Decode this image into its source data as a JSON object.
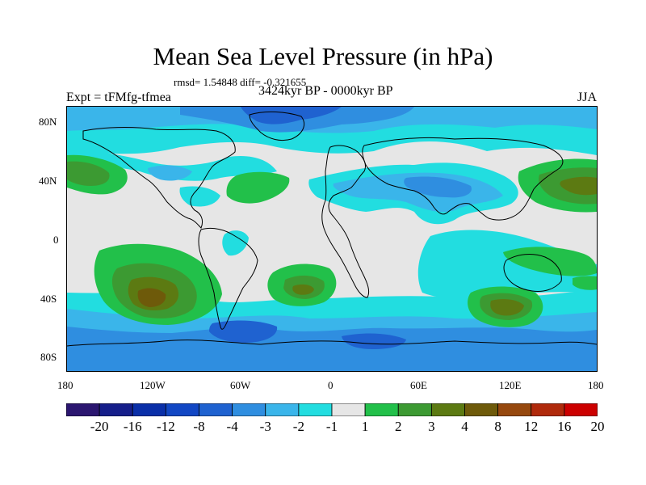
{
  "title": "Mean Sea Level Pressure (in hPa)",
  "stats": "rmsd= 1.54848 diff= -0.321655",
  "experiment": "Expt = tFMfg-tfmea",
  "period": "3424kyr BP - 0000kyr BP",
  "season": "JJA",
  "lat_labels": [
    "80N",
    "40N",
    "0",
    "40S",
    "80S"
  ],
  "lon_labels": [
    "180",
    "120W",
    "60W",
    "0",
    "60E",
    "120E",
    "180"
  ],
  "colorbar": {
    "colors": [
      "#2b1670",
      "#151e8a",
      "#0a2fa8",
      "#1247c4",
      "#1f62d0",
      "#2f8ee0",
      "#3ab5ea",
      "#22dde0",
      "#e6e6e6",
      "#22c04a",
      "#3c9a32",
      "#5c7a12",
      "#6e5a0a",
      "#96480e",
      "#b02a0c",
      "#cc0000"
    ],
    "labels": [
      "-20",
      "-16",
      "-12",
      "-8",
      "-4",
      "-3",
      "-2",
      "-1",
      "1",
      "2",
      "3",
      "4",
      "8",
      "12",
      "16",
      "20"
    ]
  },
  "regions": {
    "neutral": "#e6e6e6",
    "dark_blue": "#1f62d0",
    "blue": "#2f8ee0",
    "light_blue": "#3ab5ea",
    "cyan": "#22dde0",
    "green": "#22c04a",
    "dark_green": "#3c9a32",
    "olive": "#5c7a12",
    "brown": "#6e5a0a"
  }
}
